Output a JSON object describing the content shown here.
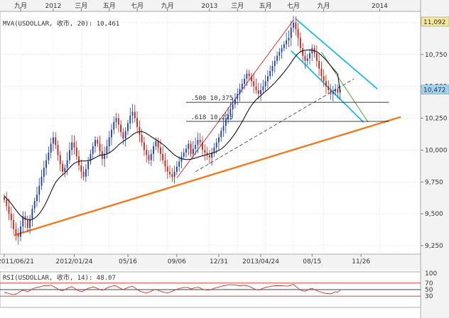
{
  "chart_data": {
    "type": "candlestick",
    "main": {
      "indicator_label": "MVA(USDOLLAR, 收市, 20): 10,461",
      "ylim": [
        9250,
        11100
      ],
      "y_ticks": [
        {
          "label": "11,000",
          "value": 11000
        },
        {
          "label": "10,750",
          "value": 10750
        },
        {
          "label": "10,500",
          "value": 10500
        },
        {
          "label": "10,250",
          "value": 10250
        },
        {
          "label": "10,000",
          "value": 10000
        },
        {
          "label": "9,750",
          "value": 9750
        },
        {
          "label": "9,500",
          "value": 9500
        },
        {
          "label": "9,250",
          "value": 9250
        }
      ],
      "top_axis": [
        {
          "label": "九月",
          "i": 7
        },
        {
          "label": "2012",
          "i": 21
        },
        {
          "label": "三月",
          "i": 33
        },
        {
          "label": "五月",
          "i": 45
        },
        {
          "label": "七月",
          "i": 57
        },
        {
          "label": "九月",
          "i": 70
        },
        {
          "label": "2013",
          "i": 88
        },
        {
          "label": "三月",
          "i": 100
        },
        {
          "label": "五月",
          "i": 112
        },
        {
          "label": "七月",
          "i": 124
        },
        {
          "label": "九月",
          "i": 137
        },
        {
          "label": "2014",
          "i": 161
        }
      ],
      "bottom_axis": [
        {
          "label": "2011/06/21",
          "i": 0
        },
        {
          "label": "2012/01/24",
          "i": 30
        },
        {
          "label": "05/16",
          "i": 53
        },
        {
          "label": "09/06",
          "i": 74
        },
        {
          "label": "12/31",
          "i": 92
        },
        {
          "label": "2013/04/24",
          "i": 110
        },
        {
          "label": "08/15",
          "i": 132
        },
        {
          "label": "11/26",
          "i": 153
        }
      ],
      "price_tags": [
        {
          "label": "11,092",
          "value": 11092,
          "bg": "#f5e79e"
        },
        {
          "label": "10,472",
          "value": 10472,
          "bg": "#9fd4f0"
        }
      ],
      "fib_levels": [
        {
          "label": ".500  10,375",
          "value": 10375
        },
        {
          "label": ".618  10,225",
          "value": 10225
        }
      ],
      "closes": [
        9610,
        9560,
        9500,
        9450,
        9380,
        9340,
        9320,
        9400,
        9480,
        9450,
        9390,
        9460,
        9540,
        9600,
        9650,
        9720,
        9790,
        9860,
        9920,
        9980,
        10050,
        10100,
        10040,
        9960,
        9890,
        9830,
        9860,
        9920,
        10000,
        10060,
        10020,
        9950,
        9880,
        9830,
        9790,
        9850,
        9910,
        9970,
        10030,
        10080,
        10050,
        9990,
        9930,
        9970,
        10030,
        10100,
        10160,
        10220,
        10250,
        10200,
        10140,
        10090,
        10150,
        10210,
        10270,
        10300,
        10250,
        10180,
        10120,
        10060,
        10000,
        9960,
        9920,
        9970,
        10030,
        10070,
        10020,
        9970,
        9920,
        9870,
        9830,
        9810,
        9790,
        9830,
        9870,
        9910,
        9950,
        9980,
        10010,
        10050,
        9970,
        10010,
        10040,
        10080,
        10060,
        10000,
        9980,
        9960,
        9940,
        9980,
        10020,
        10060,
        10100,
        10150,
        10190,
        10240,
        10280,
        10320,
        10360,
        10400,
        10440,
        10480,
        10520,
        10560,
        10600,
        10580,
        10540,
        10500,
        10470,
        10440,
        10470,
        10500,
        10540,
        10580,
        10620,
        10660,
        10700,
        10740,
        10770,
        10800,
        10830,
        10860,
        10880,
        10960,
        11000,
        10950,
        10880,
        10800,
        10740,
        10700,
        10720,
        10760,
        10800,
        10760,
        10700,
        10640,
        10580,
        10540,
        10500,
        10470,
        10440,
        10460,
        10480,
        10450,
        10472
      ],
      "ma20": [
        9640,
        9620,
        9600,
        9580,
        9555,
        9530,
        9505,
        9485,
        9470,
        9460,
        9455,
        9450,
        9455,
        9465,
        9480,
        9500,
        9525,
        9555,
        9590,
        9630,
        9670,
        9710,
        9745,
        9770,
        9790,
        9805,
        9820,
        9840,
        9860,
        9880,
        9895,
        9905,
        9912,
        9915,
        9915,
        9915,
        9917,
        9922,
        9930,
        9940,
        9950,
        9958,
        9962,
        9965,
        9970,
        9978,
        9990,
        10005,
        10022,
        10040,
        10055,
        10068,
        10080,
        10092,
        10105,
        10120,
        10132,
        10140,
        10145,
        10145,
        10140,
        10130,
        10118,
        10105,
        10093,
        10082,
        10070,
        10058,
        10045,
        10030,
        10012,
        9995,
        9978,
        9962,
        9950,
        9940,
        9932,
        9928,
        9926,
        9926,
        9928,
        9932,
        9938,
        9944,
        9950,
        9955,
        9960,
        9965,
        9970,
        9975,
        9980,
        9988,
        9997,
        10008,
        10022,
        10040,
        10060,
        10082,
        10106,
        10132,
        10160,
        10190,
        10222,
        10256,
        10290,
        10322,
        10350,
        10374,
        10395,
        10412,
        10428,
        10444,
        10460,
        10476,
        10492,
        10510,
        10528,
        10548,
        10568,
        10590,
        10612,
        10636,
        10660,
        10686,
        10714,
        10738,
        10758,
        10772,
        10780,
        10784,
        10786,
        10786,
        10784,
        10780,
        10772,
        10760,
        10744,
        10726,
        10706,
        10684,
        10662,
        10640,
        10618,
        10596,
        10461
      ]
    },
    "rsi": {
      "label": "RSI(USDOLLAR, 收市, 14): 48.07",
      "ylim": [
        0,
        100
      ],
      "y_ticks": [
        {
          "label": "100",
          "value": 100
        },
        {
          "label": "70",
          "value": 70
        },
        {
          "label": "50",
          "value": 50
        },
        {
          "label": "30",
          "value": 30
        }
      ],
      "values": [
        42,
        40,
        38,
        36,
        35,
        36,
        40,
        45,
        48,
        46,
        44,
        47,
        52,
        55,
        57,
        58,
        60,
        62,
        63,
        62,
        64,
        60,
        56,
        52,
        48,
        46,
        50,
        54,
        57,
        59,
        55,
        50,
        46,
        44,
        46,
        50,
        54,
        56,
        58,
        57,
        53,
        50,
        48,
        51,
        55,
        58,
        60,
        62,
        61,
        57,
        53,
        50,
        53,
        56,
        59,
        60,
        56,
        50,
        46,
        43,
        41,
        40,
        42,
        45,
        49,
        51,
        48,
        45,
        43,
        41,
        40,
        42,
        45,
        48,
        51,
        53,
        55,
        56,
        57,
        56,
        52,
        54,
        56,
        57,
        55,
        51,
        50,
        49,
        49,
        51,
        54,
        56,
        58,
        60,
        62,
        63,
        64,
        65,
        64,
        64,
        63,
        62,
        63,
        63,
        62,
        60,
        57,
        53,
        50,
        49,
        51,
        54,
        57,
        58,
        60,
        61,
        62,
        62,
        62,
        62,
        61,
        61,
        61,
        64,
        66,
        60,
        54,
        49,
        46,
        45,
        48,
        52,
        54,
        50,
        47,
        44,
        42,
        40,
        38,
        38,
        37,
        40,
        43,
        42,
        48
      ]
    }
  }
}
